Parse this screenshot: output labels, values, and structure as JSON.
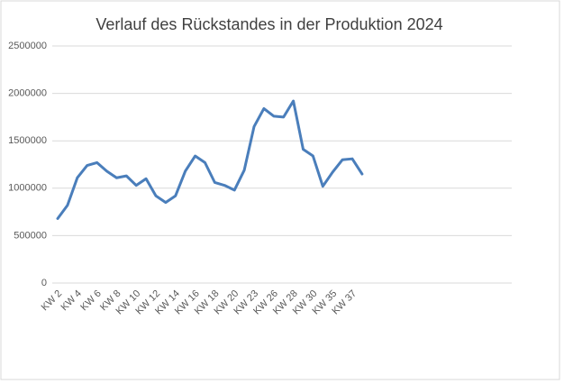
{
  "chart_data": {
    "type": "line",
    "title": "Verlauf des Rückstandes in der Produktion 2024",
    "categories": [
      "KW 2",
      null,
      "KW 4",
      null,
      "KW 6",
      null,
      "KW 8",
      null,
      "KW 10",
      null,
      "KW 12",
      null,
      "KW 14",
      null,
      "KW 16",
      null,
      "KW 18",
      null,
      "KW 20",
      null,
      "KW 23",
      null,
      "KW 26",
      null,
      "KW 28",
      null,
      "KW 30",
      null,
      "KW 35",
      null,
      "KW 37",
      null
    ],
    "series": [
      {
        "color": "#4a7ebb",
        "values": [
          680000,
          820000,
          1110000,
          1240000,
          1270000,
          1180000,
          1110000,
          1130000,
          1030000,
          1100000,
          920000,
          850000,
          920000,
          1180000,
          1340000,
          1270000,
          1060000,
          1030000,
          980000,
          1190000,
          1650000,
          1840000,
          1760000,
          1750000,
          1920000,
          1410000,
          1340000,
          1020000,
          1170000,
          1300000,
          1310000,
          1150000
        ]
      }
    ],
    "ylim": [
      0,
      2500000
    ],
    "yticks": [
      0,
      500000,
      1000000,
      1500000,
      2000000,
      2500000
    ],
    "grid": true
  }
}
